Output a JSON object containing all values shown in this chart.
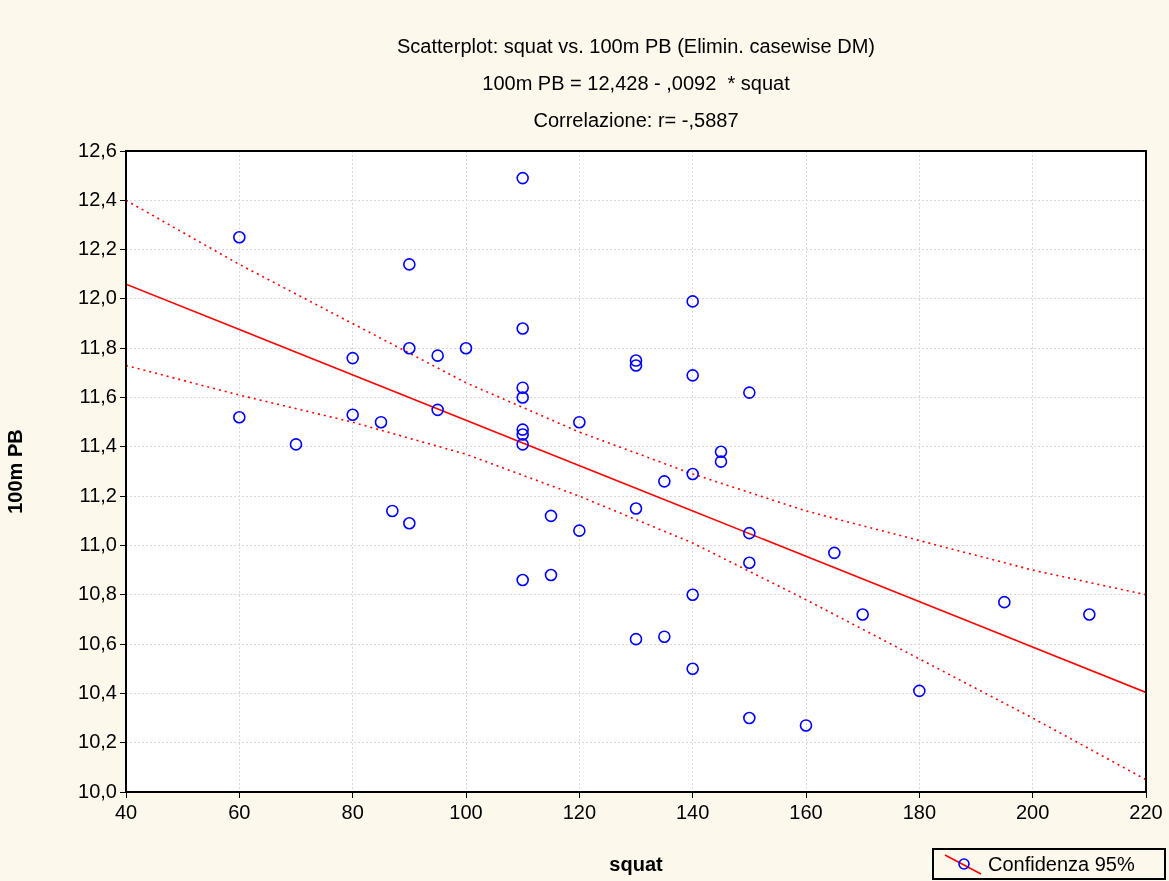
{
  "chart_data": {
    "type": "scatter",
    "title": "Scatterplot: squat vs. 100m PB (Elimin. casewise DM)",
    "subtitle": "100m PB = 12,428 - ,0092  * squat",
    "annotations": [
      "Correlazione: r= -,5887"
    ],
    "xlabel": "squat",
    "ylabel": "100m PB",
    "xlim": [
      40,
      220
    ],
    "xticks": [
      40,
      60,
      80,
      100,
      120,
      140,
      160,
      180,
      200,
      220
    ],
    "ylim": [
      10.0,
      12.6
    ],
    "yticks": [
      {
        "value": 10.0,
        "label": "10,0"
      },
      {
        "value": 10.2,
        "label": "10,2"
      },
      {
        "value": 10.4,
        "label": "10,4"
      },
      {
        "value": 10.6,
        "label": "10,6"
      },
      {
        "value": 10.8,
        "label": "10,8"
      },
      {
        "value": 11.0,
        "label": "11,0"
      },
      {
        "value": 11.2,
        "label": "11,2"
      },
      {
        "value": 11.4,
        "label": "11,4"
      },
      {
        "value": 11.6,
        "label": "11,6"
      },
      {
        "value": 11.8,
        "label": "11,8"
      },
      {
        "value": 12.0,
        "label": "12,0"
      },
      {
        "value": 12.2,
        "label": "12,2"
      },
      {
        "value": 12.4,
        "label": "12,4"
      },
      {
        "value": 12.6,
        "label": "12,6"
      }
    ],
    "grid": true,
    "legend": "bottom right",
    "series": [
      {
        "color": "#0000ff",
        "marker": "circle",
        "x": [
          60,
          110,
          90,
          140,
          110,
          80,
          90,
          95,
          100,
          130,
          130,
          140,
          150,
          110,
          110,
          60,
          80,
          85,
          95,
          120,
          110,
          110,
          110,
          70,
          145,
          145,
          140,
          135,
          87,
          90,
          115,
          130,
          120,
          150,
          165,
          150,
          110,
          115,
          140,
          170,
          195,
          210,
          130,
          135,
          140,
          180,
          150,
          160
        ],
        "values": [
          12.25,
          12.49,
          12.14,
          11.99,
          11.88,
          11.76,
          11.8,
          11.77,
          11.8,
          11.75,
          11.73,
          11.69,
          11.62,
          11.64,
          11.6,
          11.52,
          11.53,
          11.5,
          11.55,
          11.5,
          11.47,
          11.45,
          11.41,
          11.41,
          11.38,
          11.34,
          11.29,
          11.26,
          11.14,
          11.09,
          11.12,
          11.15,
          11.06,
          11.05,
          10.97,
          10.93,
          10.86,
          10.88,
          10.8,
          10.72,
          10.77,
          10.72,
          10.62,
          10.63,
          10.5,
          10.41,
          10.3,
          10.27
        ]
      },
      {
        "type": "line",
        "color": "#ff0000",
        "marker": "none",
        "line_style": "solid",
        "x": [
          40,
          220
        ],
        "values": [
          12.06,
          10.404
        ]
      },
      {
        "type": "line",
        "name": "Confidenza 95%",
        "color": "#ff0000",
        "marker": "none",
        "line_style": "dotted",
        "x": [
          40,
          60,
          80,
          100,
          120,
          140,
          160,
          180,
          200,
          220
        ],
        "values": [
          12.4,
          12.14,
          11.9,
          11.66,
          11.46,
          11.29,
          11.14,
          11.02,
          10.9,
          10.8
        ]
      },
      {
        "type": "line",
        "color": "#ff0000",
        "marker": "none",
        "line_style": "dotted",
        "x": [
          40,
          60,
          80,
          100,
          120,
          140,
          160,
          180,
          200,
          220
        ],
        "values": [
          11.73,
          11.61,
          11.5,
          11.37,
          11.2,
          11.01,
          10.78,
          10.54,
          10.3,
          10.05
        ]
      }
    ]
  }
}
